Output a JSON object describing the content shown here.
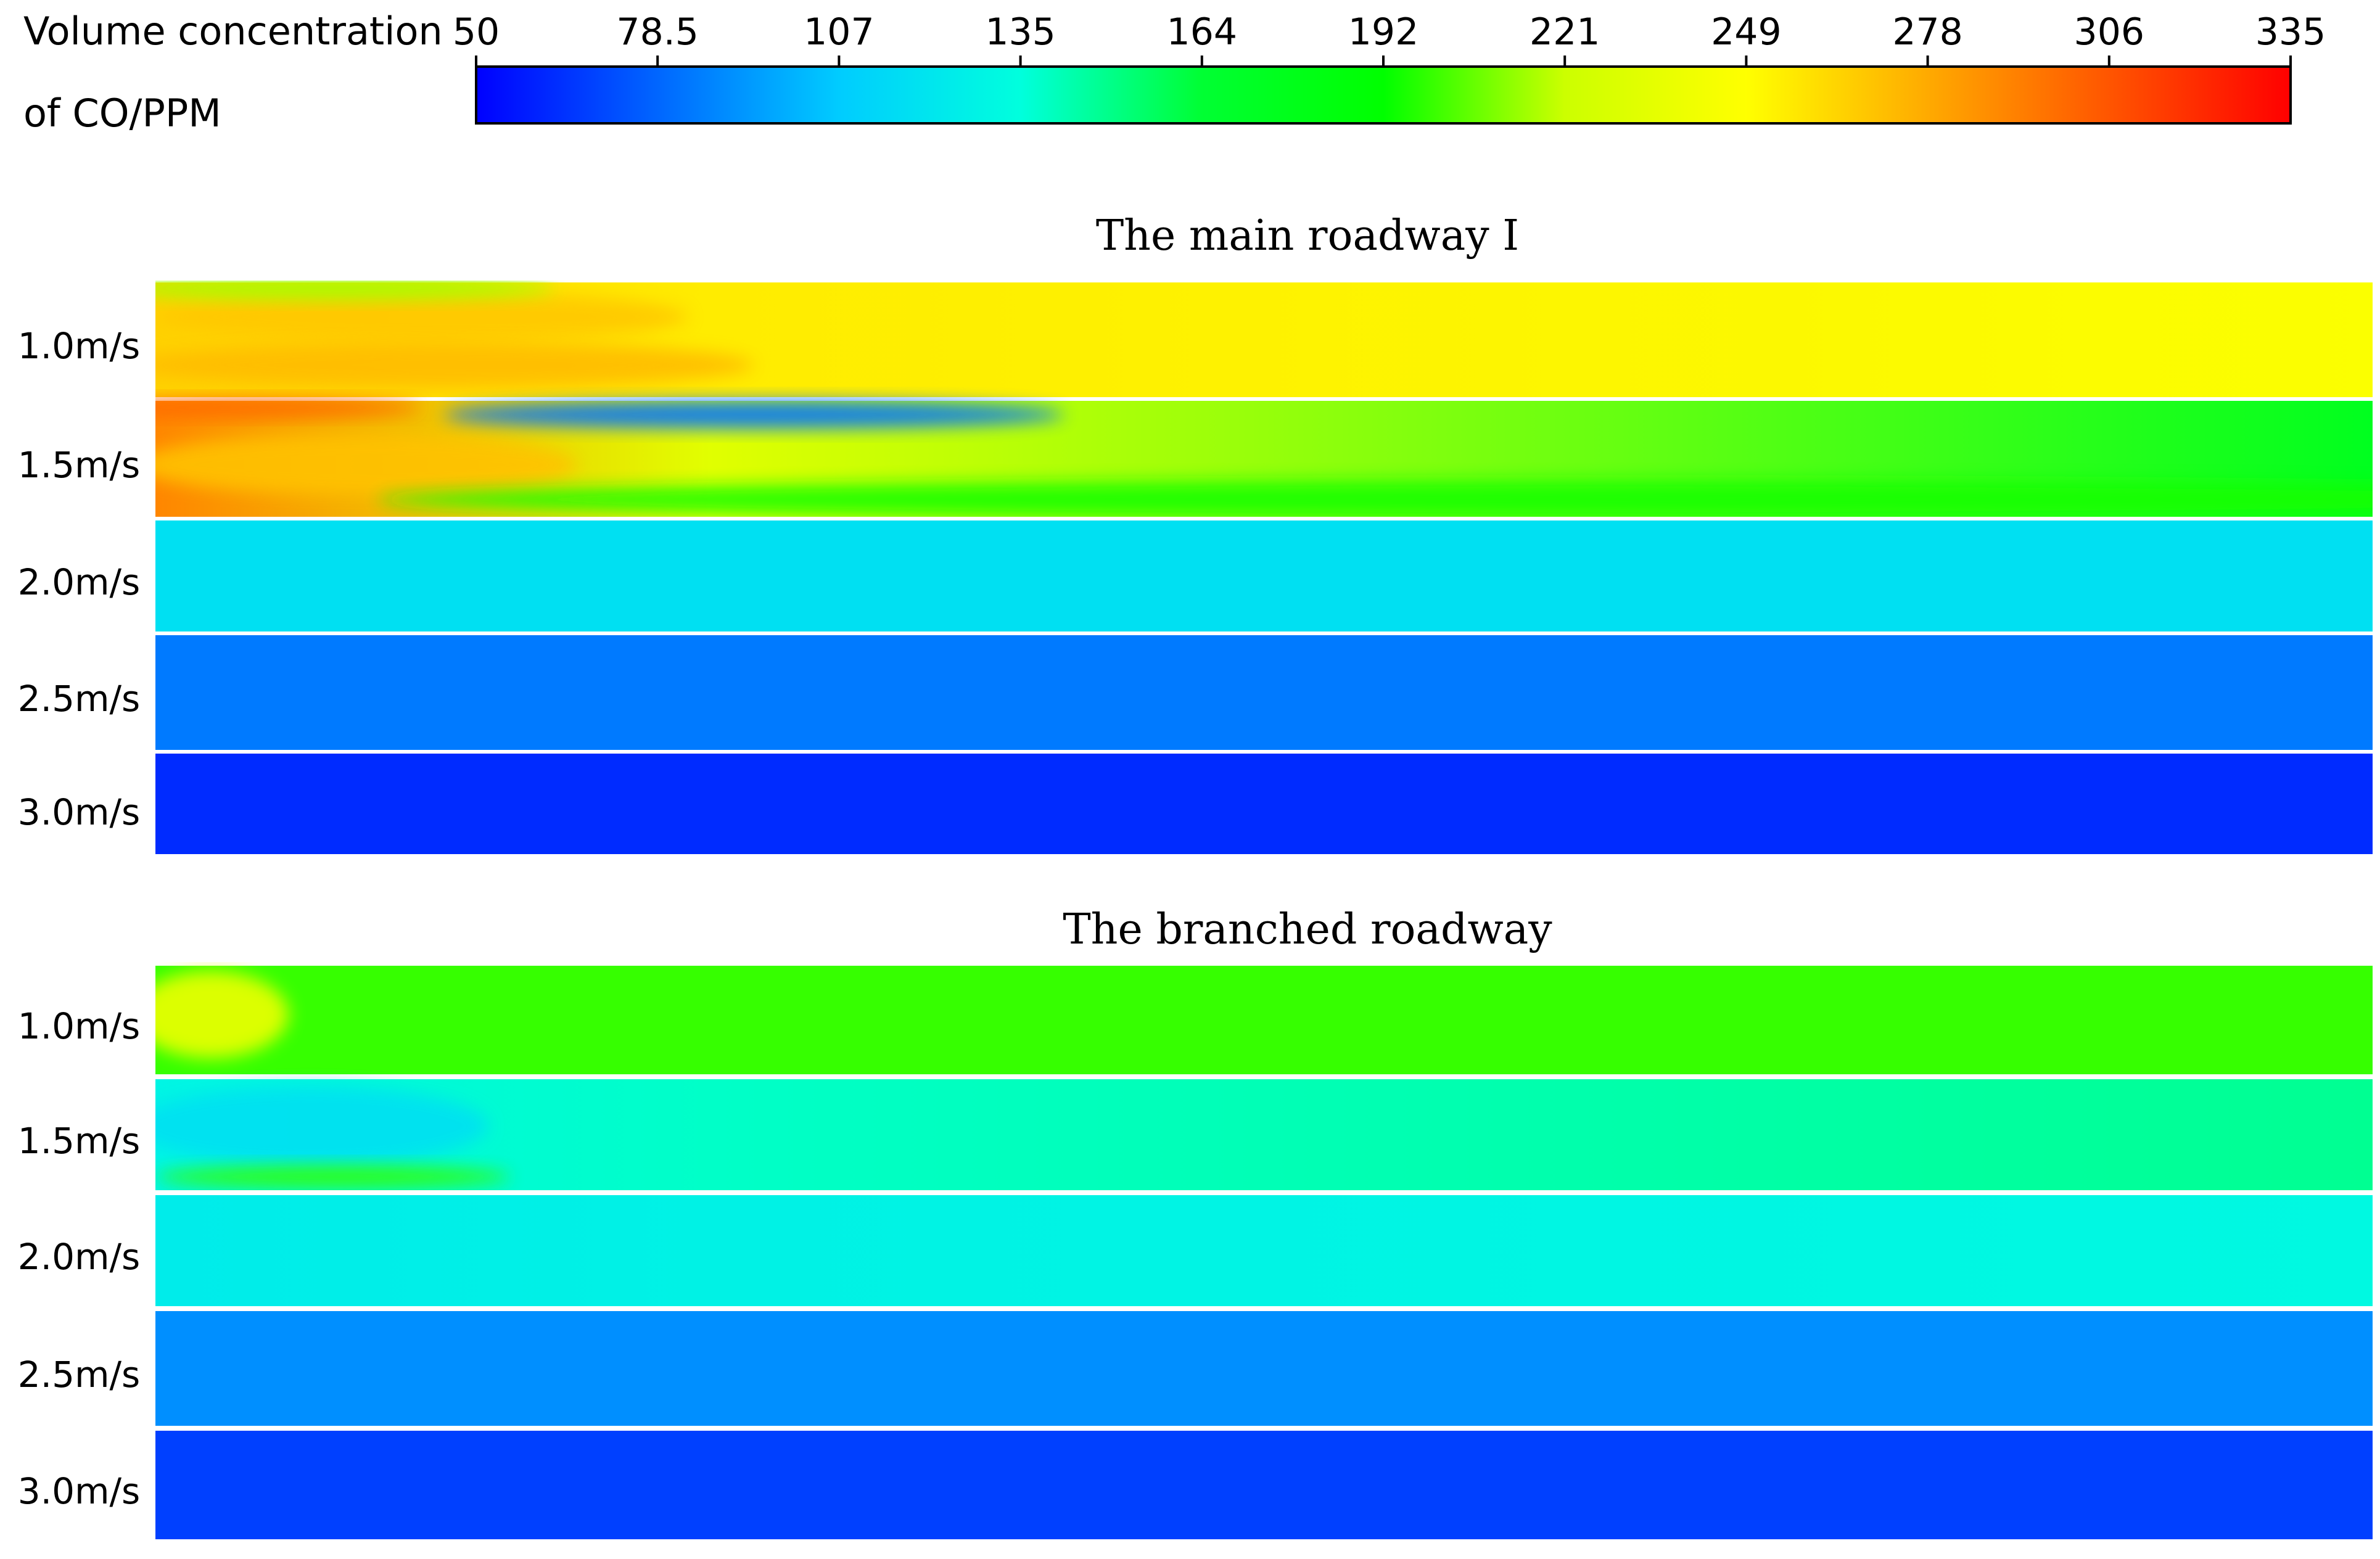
{
  "chart_data": {
    "type": "heatmap",
    "colorbar": {
      "title_lines": [
        "Volume concentration",
        "of CO/PPM"
      ],
      "min": 50,
      "max": 335,
      "ticks": [
        "50",
        "78.5",
        "107",
        "135",
        "164",
        "192",
        "221",
        "249",
        "278",
        "306",
        "335"
      ],
      "colors": [
        "#0000ff",
        "#0066ff",
        "#00ccff",
        "#00ffdd",
        "#00ff33",
        "#00ff00",
        "#ccff00",
        "#ffff00",
        "#ffaa00",
        "#ff5500",
        "#ff0000"
      ]
    },
    "panels": [
      {
        "title": "The main roadway Ⅰ",
        "rows": [
          {
            "label": "1.0m/s",
            "base_value": 247,
            "inlet_value": 265,
            "features": [
              {
                "value": 268,
                "where": "upper band near inlet"
              },
              {
                "value": 272,
                "where": "lower band near inlet"
              },
              {
                "value": 215,
                "where": "green streak along top near inlet"
              }
            ]
          },
          {
            "label": "1.5m/s",
            "base_value": 175,
            "inlet_value": 290,
            "features": [
              {
                "value": 300,
                "where": "red streak at top near inlet"
              },
              {
                "value": 270,
                "where": "orange streaks near inlet"
              },
              {
                "value": 82,
                "where": "blue tongue along top"
              },
              {
                "value": 195,
                "where": "green band along bottom"
              }
            ]
          },
          {
            "label": "2.0m/s",
            "base_value": 118,
            "inlet_value": 118,
            "features": []
          },
          {
            "label": "2.5m/s",
            "base_value": 84,
            "inlet_value": 84,
            "features": []
          },
          {
            "label": "3.0m/s",
            "base_value": 62,
            "inlet_value": 62,
            "features": []
          }
        ]
      },
      {
        "title": "The branched roadway",
        "rows": [
          {
            "label": "1.0m/s",
            "base_value": 200,
            "inlet_value": 200,
            "features": [
              {
                "value": 240,
                "where": "yellow blob near inlet"
              }
            ]
          },
          {
            "label": "1.5m/s",
            "base_value": 148,
            "inlet_value": 130,
            "features": [
              {
                "value": 118,
                "where": "light blue region near inlet"
              },
              {
                "value": 200,
                "where": "green band along bottom near inlet"
              }
            ]
          },
          {
            "label": "2.0m/s",
            "base_value": 132,
            "inlet_value": 125,
            "features": []
          },
          {
            "label": "2.5m/s",
            "base_value": 90,
            "inlet_value": 90,
            "features": []
          },
          {
            "label": "3.0m/s",
            "base_value": 68,
            "inlet_value": 68,
            "features": []
          }
        ]
      }
    ]
  }
}
